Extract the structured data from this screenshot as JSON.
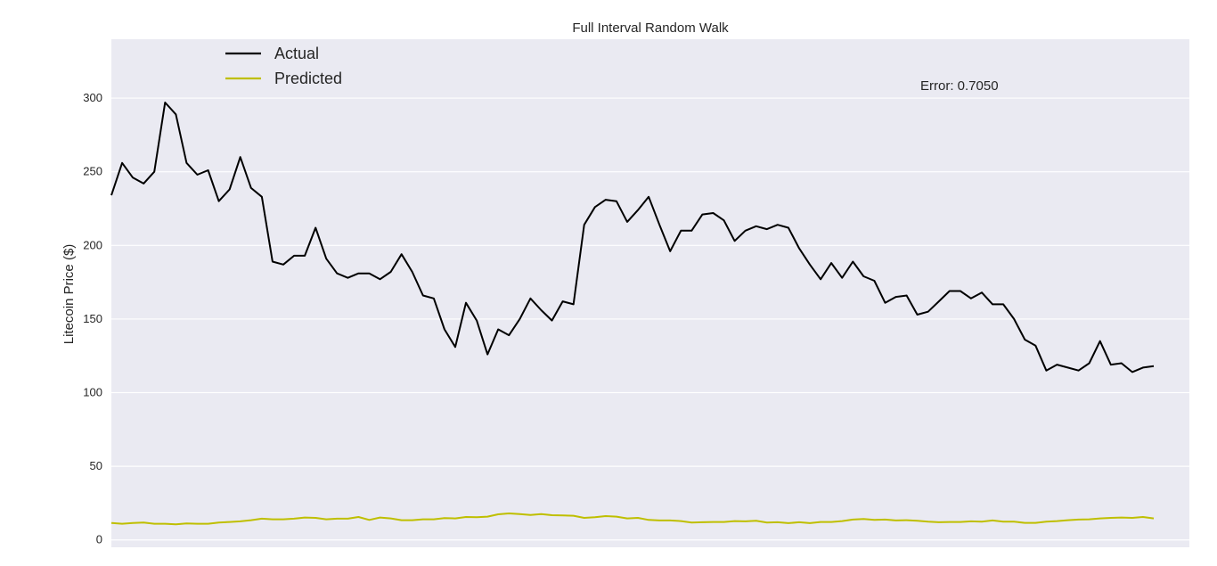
{
  "chart_data": {
    "type": "line",
    "title": "Full Interval Random Walk",
    "xlabel": "",
    "ylabel": "Litecoin Price ($)",
    "ylim": [
      -5,
      340
    ],
    "yticks": [
      0,
      50,
      100,
      150,
      200,
      250,
      300
    ],
    "grid": true,
    "legend_placement": "top-left",
    "annotation": "Error: 0.7050",
    "colors": {
      "background": "#eaeaf2",
      "grid": "#ffffff",
      "actual": "#000000",
      "predicted": "#bfbf00"
    },
    "series": [
      {
        "name": "Actual",
        "color": "#000000",
        "values": [
          234,
          256,
          246,
          242,
          250,
          297,
          289,
          256,
          248,
          251,
          230,
          238,
          260,
          239,
          233,
          189,
          187,
          193,
          193,
          212,
          191,
          181,
          178,
          181,
          181,
          177,
          182,
          194,
          182,
          166,
          164,
          143,
          131,
          161,
          149,
          126,
          143,
          139,
          150,
          164,
          156,
          149,
          162,
          160,
          214,
          226,
          231,
          230,
          216,
          224,
          233,
          214,
          196,
          210,
          210,
          221,
          222,
          217,
          203,
          210,
          213,
          211,
          214,
          212,
          198,
          187,
          177,
          188,
          178,
          189,
          179,
          176,
          161,
          165,
          166,
          153,
          155,
          162,
          169,
          169,
          164,
          168,
          160,
          160,
          150,
          136,
          132,
          115,
          119,
          117,
          115,
          120,
          135,
          119,
          120,
          114,
          117,
          118
        ]
      },
      {
        "name": "Predicted",
        "color": "#bfbf00",
        "values": [
          11.5,
          11,
          11.5,
          11.8,
          11,
          11,
          10.6,
          11.2,
          11,
          11,
          11.8,
          12.2,
          12.6,
          13.4,
          14.4,
          14,
          14,
          14.4,
          15.2,
          15,
          14,
          14.4,
          14.4,
          15.6,
          13.6,
          15.2,
          14.6,
          13.4,
          13.4,
          14,
          14,
          14.8,
          14.6,
          15.6,
          15.4,
          15.8,
          17.4,
          18,
          17.6,
          17,
          17.6,
          16.8,
          16.6,
          16.4,
          15,
          15.4,
          16.2,
          15.8,
          14.6,
          15,
          13.6,
          13.2,
          13.2,
          12.8,
          11.8,
          12,
          12.2,
          12.2,
          12.8,
          12.6,
          13,
          11.8,
          12,
          11.4,
          12,
          11.4,
          12.2,
          12.2,
          12.8,
          13.8,
          14.2,
          13.6,
          13.8,
          13.2,
          13.4,
          13,
          12.4,
          12,
          12.2,
          12.2,
          12.6,
          12.4,
          13.2,
          12.4,
          12.4,
          11.6,
          11.6,
          12.4,
          12.8,
          13.4,
          13.8,
          14,
          14.6,
          15,
          15.2,
          15,
          15.6,
          14.6
        ]
      }
    ]
  }
}
